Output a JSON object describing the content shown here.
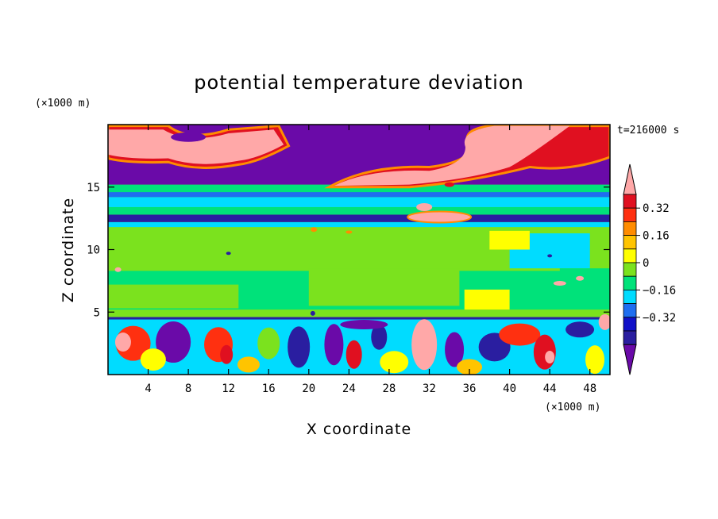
{
  "chart_data": {
    "type": "heatmap",
    "title": "potential temperature deviation",
    "xlabel": "X coordinate",
    "ylabel": "Z coordinate",
    "x_units": "(×1000 m)",
    "y_units": "(×1000 m)",
    "time_label": "t=216000 s",
    "xlim": [
      0,
      50
    ],
    "ylim": [
      0,
      20
    ],
    "x_ticks": [
      4,
      8,
      12,
      16,
      20,
      24,
      28,
      32,
      36,
      40,
      44,
      48
    ],
    "y_ticks": [
      5,
      10,
      15
    ],
    "colorbar": {
      "levels": [
        -0.48,
        -0.4,
        -0.32,
        -0.24,
        -0.16,
        -0.08,
        0,
        0.08,
        0.16,
        0.24,
        0.32,
        0.4
      ],
      "tick_labels": [
        "0.32",
        "0.16",
        "0",
        "−0.16",
        "−0.32"
      ],
      "tick_values": [
        0.32,
        0.16,
        0,
        -0.16,
        -0.32
      ],
      "colors": [
        "#6a0aa8",
        "#2a1ea0",
        "#1010c8",
        "#1e6ef0",
        "#00dcff",
        "#00e27a",
        "#7be21e",
        "#ffff00",
        "#ffc400",
        "#ff8c00",
        "#ff3010",
        "#e01020",
        "#ffa8a8"
      ],
      "extend": "both"
    },
    "grid": false,
    "legend": "right"
  }
}
